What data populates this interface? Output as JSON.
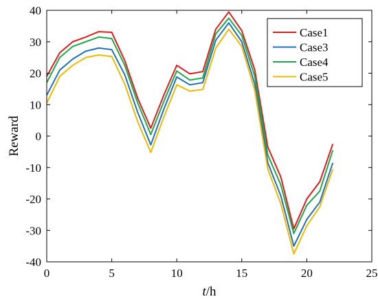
{
  "chart_data": {
    "type": "line",
    "title": "",
    "xlabel": "t/h",
    "xlabel_italic_part": "t",
    "xlabel_rest": "/h",
    "ylabel": "Reward",
    "xlim": [
      0,
      25
    ],
    "ylim": [
      -40,
      40
    ],
    "xticks": [
      0,
      5,
      10,
      15,
      20,
      25
    ],
    "yticks": [
      40,
      30,
      20,
      10,
      0,
      -10,
      -20,
      -30,
      -40
    ],
    "grid": false,
    "legend_position": "top-right",
    "x": [
      0,
      1,
      2,
      3,
      4,
      5,
      6,
      7,
      8,
      9,
      10,
      11,
      12,
      13,
      14,
      15,
      16,
      17,
      18,
      19,
      20,
      21,
      22
    ],
    "series": [
      {
        "name": "Case1",
        "color": "#e31a1c",
        "values": [
          19,
          26.5,
          30,
          31.5,
          33.2,
          33,
          24,
          12,
          2.5,
          13,
          22.5,
          19.8,
          20.5,
          34,
          39.5,
          33.5,
          21,
          -3.5,
          -13,
          -29.5,
          -20,
          -14.5,
          -2.5
        ]
      },
      {
        "name": "Case3",
        "color": "#1f6fc1",
        "values": [
          13,
          21,
          24.5,
          27,
          28,
          27.5,
          19.5,
          7.5,
          -2.8,
          8.5,
          18.8,
          16.3,
          17,
          30.5,
          36,
          30,
          16.5,
          -8.5,
          -19,
          -35,
          -26.5,
          -21,
          -8.5
        ]
      },
      {
        "name": "Case4",
        "color": "#1fa84a",
        "values": [
          17,
          25,
          28.5,
          30,
          31.5,
          31,
          22.5,
          10.5,
          0.5,
          11,
          20.7,
          17.8,
          18.5,
          32.5,
          37.5,
          32,
          19,
          -6,
          -15.5,
          -31,
          -22,
          -17.5,
          -4.5
        ]
      },
      {
        "name": "Case5",
        "color": "#f2b800",
        "values": [
          10.5,
          19,
          22.5,
          25,
          25.8,
          25.3,
          16.5,
          4.5,
          -5.2,
          6,
          16.3,
          14.3,
          14.8,
          28,
          34,
          28.5,
          14.5,
          -10.5,
          -21.5,
          -37.5,
          -28.5,
          -22.5,
          -10.5
        ]
      }
    ]
  }
}
